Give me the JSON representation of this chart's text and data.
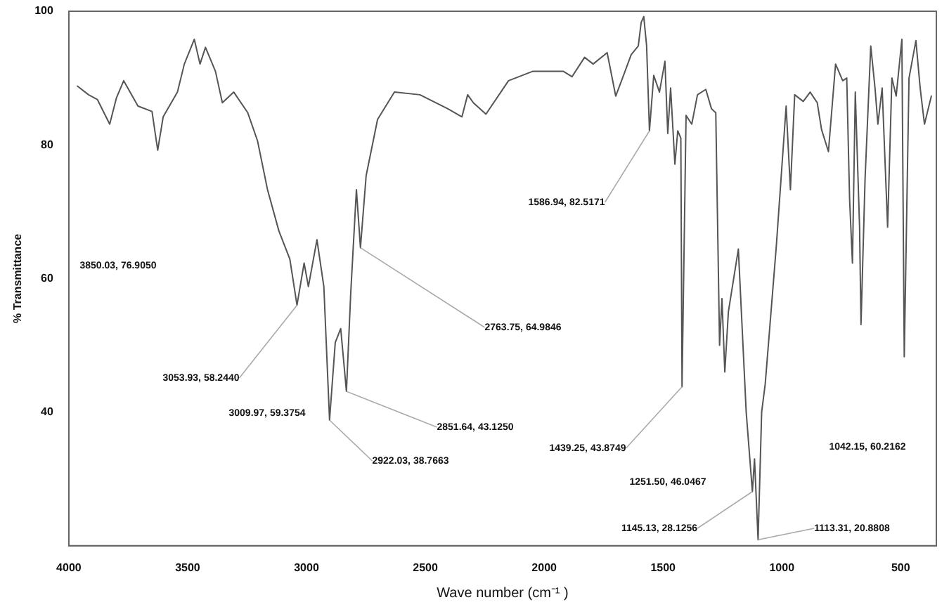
{
  "chart_data": {
    "type": "line",
    "xlabel": "Wave number (cm⁻¹ )",
    "ylabel": "% Transmittance",
    "xlim": [
      4000,
      350
    ],
    "xticks": [
      4000,
      3500,
      3000,
      2500,
      2000,
      1500,
      1000,
      500
    ],
    "ylim": [
      20,
      100
    ],
    "yticks": [
      40,
      60,
      80,
      100
    ],
    "grid": false,
    "legend": false,
    "marker": "none",
    "line_style": "solid",
    "annotations": [
      "3850.03, 76.9050",
      {
        "text": "3053.93, 58.2440",
        "x": 3040,
        "y": 56.0
      },
      "3009.97, 59.3754",
      {
        "text": "2922.03, 38.7663",
        "x": 2903,
        "y": 38.8
      },
      {
        "text": "2851.64, 43.1250",
        "x": 2832,
        "y": 43.1
      },
      {
        "text": "2763.75, 64.9846",
        "x": 2773,
        "y": 64.6
      },
      {
        "text": "1586.94, 82.5171",
        "x": 1557,
        "y": 82.1
      },
      {
        "text": "1439.25, 43.8749",
        "x": 1420,
        "y": 43.8
      },
      "1251.50, 46.0467",
      {
        "text": "1145.13, 28.1256",
        "x": 1124,
        "y": 28.1
      },
      {
        "text": "1113.31, 20.8808",
        "x": 1100,
        "y": 20.9
      },
      "1042.15, 60.2162"
    ],
    "series": [
      {
        "color": "#555555",
        "x": [
          3964,
          3917,
          3880,
          3828,
          3800,
          3769,
          3709,
          3650,
          3626,
          3603,
          3543,
          3514,
          3472,
          3448,
          3425,
          3383,
          3354,
          3306,
          3247,
          3206,
          3164,
          3116,
          3070,
          3040,
          3010,
          2992,
          2956,
          2927,
          2903,
          2879,
          2856,
          2832,
          2814,
          2790,
          2773,
          2749,
          2701,
          2630,
          2523,
          2405,
          2346,
          2322,
          2298,
          2245,
          2150,
          2049,
          1919,
          1883,
          1830,
          1794,
          1735,
          1699,
          1664,
          1634,
          1604,
          1592,
          1581,
          1569,
          1557,
          1539,
          1515,
          1492,
          1480,
          1468,
          1450,
          1438,
          1425,
          1420,
          1403,
          1379,
          1355,
          1320,
          1296,
          1278,
          1262,
          1252,
          1240,
          1225,
          1183,
          1150,
          1124,
          1115,
          1100,
          1085,
          1070,
          1023,
          982,
          964,
          946,
          910,
          881,
          851,
          833,
          804,
          774,
          744,
          727,
          715,
          703,
          691,
          673,
          667,
          650,
          626,
          608,
          596,
          578,
          555,
          537,
          519,
          495,
          485,
          465,
          436,
          418,
          400,
          371
        ],
        "values": [
          88.8,
          87.5,
          86.8,
          83.1,
          87.0,
          89.6,
          85.8,
          85.0,
          79.2,
          84.2,
          87.9,
          92.1,
          95.8,
          92.1,
          94.6,
          91.0,
          86.3,
          87.9,
          84.8,
          80.6,
          73.3,
          67.1,
          62.9,
          56.0,
          62.3,
          58.8,
          65.8,
          58.8,
          38.8,
          50.4,
          52.5,
          43.1,
          57.7,
          73.3,
          64.6,
          75.4,
          83.8,
          87.9,
          87.5,
          85.4,
          84.2,
          87.5,
          86.3,
          84.6,
          89.6,
          91.0,
          91.0,
          90.2,
          93.1,
          92.1,
          93.8,
          87.3,
          90.6,
          93.5,
          94.8,
          98.3,
          99.2,
          94.8,
          82.1,
          90.4,
          87.9,
          92.5,
          81.7,
          88.5,
          77.1,
          82.1,
          81.0,
          43.8,
          84.4,
          83.1,
          87.5,
          88.3,
          85.4,
          84.8,
          50.0,
          57.0,
          46.0,
          55.0,
          64.4,
          40.0,
          28.1,
          33.0,
          20.9,
          40.0,
          44.2,
          65.0,
          85.8,
          73.3,
          87.5,
          86.5,
          87.9,
          86.3,
          82.3,
          79.0,
          92.1,
          89.6,
          90.0,
          71.9,
          62.3,
          87.9,
          67.7,
          53.1,
          74.8,
          94.8,
          88.5,
          83.1,
          88.5,
          67.7,
          90.0,
          87.3,
          95.8,
          48.3,
          90.0,
          95.6,
          88.5,
          83.1,
          87.3
        ]
      }
    ]
  }
}
